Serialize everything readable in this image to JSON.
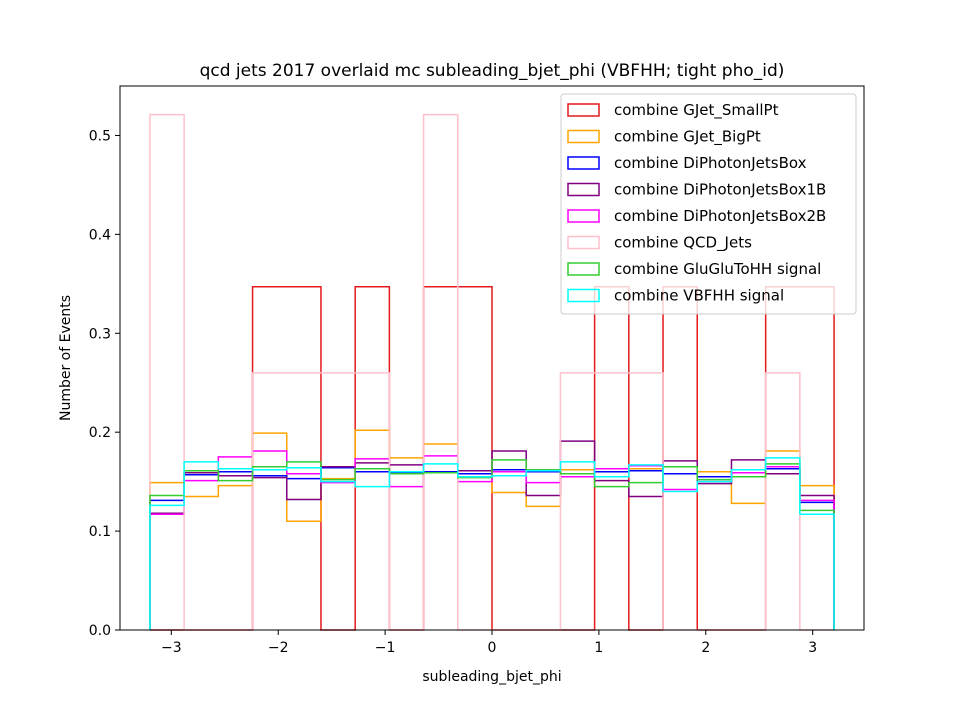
{
  "chart_data": {
    "type": "step-histogram",
    "title": "qcd jets 2017 overlaid mc subleading_bjet_phi (VBFHH; tight pho_id)",
    "xlabel": "subleading_bjet_phi",
    "ylabel": "Number of Events",
    "xlim": [
      -3.48,
      3.48
    ],
    "ylim": [
      0.0,
      0.55
    ],
    "xticks": [
      -3,
      -2,
      -1,
      0,
      1,
      2,
      3
    ],
    "xtick_labels": [
      "−3",
      "−2",
      "−1",
      "0",
      "1",
      "2",
      "3"
    ],
    "yticks": [
      0.0,
      0.1,
      0.2,
      0.3,
      0.4,
      0.5
    ],
    "ytick_labels": [
      "0.0",
      "0.1",
      "0.2",
      "0.3",
      "0.4",
      "0.5"
    ],
    "bin_edges": [
      -3.2,
      -2.88,
      -2.56,
      -2.24,
      -1.92,
      -1.6,
      -1.28,
      -0.96,
      -0.64,
      -0.32,
      0.0,
      0.32,
      0.64,
      0.96,
      1.28,
      1.6,
      1.92,
      2.24,
      2.56,
      2.88,
      3.2
    ],
    "legend_position": "top-right",
    "series": [
      {
        "name": "combine GJet_SmallPt",
        "color": "#e41a1c",
        "values": [
          0,
          0,
          0,
          0.347,
          0.347,
          0,
          0.347,
          0,
          0.347,
          0.347,
          0,
          0,
          0,
          0.347,
          0,
          0.347,
          0,
          0,
          0.347,
          0.347
        ]
      },
      {
        "name": "combine GJet_BigPt",
        "color": "#ffa500",
        "values": [
          0.149,
          0.135,
          0.146,
          0.199,
          0.11,
          0.153,
          0.202,
          0.174,
          0.188,
          0.158,
          0.139,
          0.125,
          0.162,
          0.16,
          0.163,
          0.165,
          0.16,
          0.128,
          0.181,
          0.146
        ]
      },
      {
        "name": "combine DiPhotonJetsBox",
        "color": "#0000ff",
        "values": [
          0.131,
          0.157,
          0.16,
          0.156,
          0.153,
          0.164,
          0.16,
          0.159,
          0.16,
          0.158,
          0.162,
          0.16,
          0.158,
          0.16,
          0.161,
          0.158,
          0.155,
          0.159,
          0.163,
          0.129
        ]
      },
      {
        "name": "combine DiPhotonJetsBox1B",
        "color": "#800080",
        "values": [
          0.118,
          0.159,
          0.156,
          0.154,
          0.132,
          0.165,
          0.169,
          0.167,
          0.159,
          0.161,
          0.181,
          0.136,
          0.191,
          0.151,
          0.135,
          0.171,
          0.148,
          0.172,
          0.158,
          0.136
        ]
      },
      {
        "name": "combine DiPhotonJetsBox2B",
        "color": "#ff00ff",
        "values": [
          0.117,
          0.151,
          0.175,
          0.181,
          0.158,
          0.149,
          0.173,
          0.145,
          0.176,
          0.15,
          0.16,
          0.149,
          0.155,
          0.163,
          0.166,
          0.142,
          0.15,
          0.159,
          0.165,
          0.131
        ]
      },
      {
        "name": "combine QCD_Jets",
        "color": "#ffc0cb",
        "values": [
          0.521,
          0,
          0,
          0.26,
          0.26,
          0.26,
          0.26,
          0,
          0.521,
          0,
          0,
          0,
          0.26,
          0.26,
          0.26,
          0,
          0,
          0,
          0.26,
          0
        ]
      },
      {
        "name": "combine GluGluToHH signal",
        "color": "#32cd32",
        "values": [
          0.136,
          0.161,
          0.151,
          0.165,
          0.17,
          0.152,
          0.163,
          0.158,
          0.159,
          0.154,
          0.172,
          0.162,
          0.158,
          0.145,
          0.149,
          0.165,
          0.152,
          0.155,
          0.168,
          0.121
        ]
      },
      {
        "name": "combine VBFHH signal",
        "color": "#00ffff",
        "values": [
          0.126,
          0.17,
          0.163,
          0.162,
          0.164,
          0.15,
          0.145,
          0.16,
          0.168,
          0.155,
          0.156,
          0.161,
          0.17,
          0.155,
          0.167,
          0.14,
          0.15,
          0.162,
          0.174,
          0.117
        ]
      }
    ]
  }
}
